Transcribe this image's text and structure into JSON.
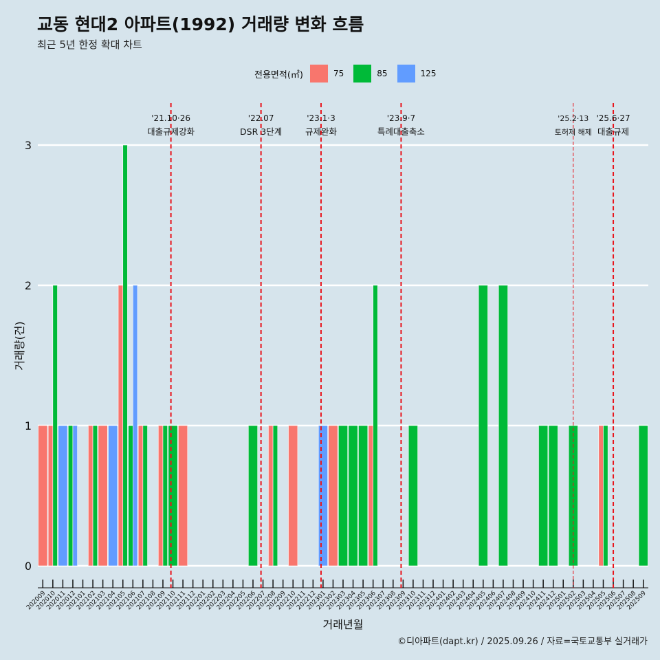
{
  "header": {
    "title": "교동 현대2 아파트(1992) 거래량 변화 흐름",
    "subtitle": "최근 5년 한정 확대 차트"
  },
  "footer": {
    "caption": "©디아파트(dapt.kr) / 2025.09.26 / 자료=국토교통부 실거래가"
  },
  "legend": {
    "title": "전용면적(㎡)",
    "items": [
      {
        "label": "75",
        "color": "#f8766d"
      },
      {
        "label": "85",
        "color": "#00ba38"
      },
      {
        "label": "125",
        "color": "#619cff"
      }
    ]
  },
  "chart_data": {
    "type": "bar",
    "xlabel": "거래년월",
    "ylabel": "거래량(건)",
    "ylim": [
      0,
      3
    ],
    "yticks": [
      0,
      1,
      2,
      3
    ],
    "categories": [
      "202009",
      "202010",
      "202011",
      "202012",
      "202101",
      "202102",
      "202103",
      "202104",
      "202105",
      "202106",
      "202107",
      "202108",
      "202109",
      "202110",
      "202111",
      "202112",
      "202201",
      "202202",
      "202203",
      "202204",
      "202205",
      "202206",
      "202207",
      "202208",
      "202209",
      "202210",
      "202211",
      "202212",
      "202301",
      "202302",
      "202303",
      "202304",
      "202305",
      "202306",
      "202307",
      "202308",
      "202309",
      "202310",
      "202311",
      "202312",
      "202401",
      "202402",
      "202403",
      "202404",
      "202405",
      "202406",
      "202407",
      "202408",
      "202409",
      "202410",
      "202411",
      "202412",
      "202501",
      "202502",
      "202503",
      "202504",
      "202505",
      "202506",
      "202507",
      "202508",
      "202509"
    ],
    "series": [
      {
        "name": "75",
        "color": "#f8766d",
        "values": [
          1,
          1,
          0,
          0,
          0,
          1,
          1,
          0,
          2,
          0,
          1,
          0,
          1,
          0,
          1,
          0,
          0,
          0,
          0,
          0,
          0,
          0,
          0,
          1,
          0,
          1,
          0,
          0,
          0,
          1,
          0,
          0,
          0,
          1,
          0,
          0,
          0,
          0,
          0,
          0,
          0,
          0,
          0,
          0,
          0,
          0,
          0,
          0,
          0,
          0,
          0,
          0,
          0,
          0,
          0,
          0,
          1,
          0,
          0,
          0,
          0
        ]
      },
      {
        "name": "85",
        "color": "#00ba38",
        "values": [
          0,
          2,
          0,
          1,
          0,
          1,
          0,
          0,
          3,
          1,
          1,
          0,
          1,
          1,
          0,
          0,
          0,
          0,
          0,
          0,
          0,
          1,
          0,
          1,
          0,
          0,
          0,
          0,
          0,
          0,
          1,
          1,
          1,
          2,
          0,
          0,
          0,
          1,
          0,
          0,
          0,
          0,
          0,
          0,
          2,
          0,
          2,
          0,
          0,
          0,
          1,
          1,
          0,
          1,
          0,
          0,
          1,
          0,
          0,
          0,
          1
        ]
      },
      {
        "name": "125",
        "color": "#619cff",
        "values": [
          0,
          0,
          1,
          1,
          0,
          0,
          0,
          1,
          0,
          2,
          0,
          0,
          0,
          0,
          0,
          0,
          0,
          0,
          0,
          0,
          0,
          0,
          0,
          0,
          0,
          0,
          0,
          0,
          1,
          0,
          0,
          0,
          0,
          0,
          0,
          0,
          0,
          0,
          0,
          0,
          0,
          0,
          0,
          0,
          0,
          0,
          0,
          0,
          0,
          0,
          0,
          0,
          0,
          0,
          0,
          0,
          0,
          0,
          0,
          0,
          0
        ]
      }
    ],
    "events": [
      {
        "x": 13.3,
        "date": "'21.10·26",
        "label": "대출규제강화",
        "style": "dashed"
      },
      {
        "x": 22.3,
        "date": "'22.07",
        "label": "DSR 3단계",
        "style": "dashed"
      },
      {
        "x": 28.3,
        "date": "'23.1·3",
        "label": "규제완화",
        "style": "dashed"
      },
      {
        "x": 36.3,
        "date": "'23.9·7",
        "label": "특례대출축소",
        "style": "dashed"
      },
      {
        "x": 53.5,
        "date": "'25.2·13",
        "label": "토허제 해제",
        "style": "thin"
      },
      {
        "x": 57.5,
        "date": "'25.6·27",
        "label": "대출규제",
        "style": "dashed"
      }
    ]
  }
}
